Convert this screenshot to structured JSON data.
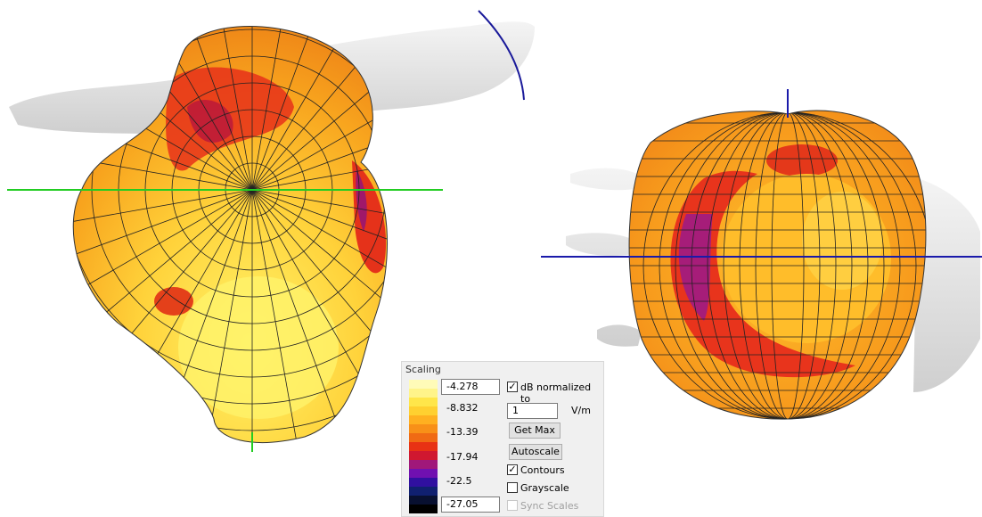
{
  "panel": {
    "title": "Scaling",
    "scale_labels": [
      "-4.278",
      "-8.832",
      "-13.39",
      "-17.94",
      "-22.5",
      "-27.05"
    ],
    "db_normalized": {
      "label": "dB normalized to",
      "checked": true
    },
    "normalize_value": "1",
    "unit": "V/m",
    "buttons": [
      "Get Max",
      "Autoscale"
    ],
    "contours": {
      "label": "Contours",
      "checked": true
    },
    "grayscale": {
      "label": "Grayscale",
      "checked": false
    },
    "sync_scales": {
      "label": "Sync Scales",
      "checked": false,
      "disabled": true
    }
  }
}
